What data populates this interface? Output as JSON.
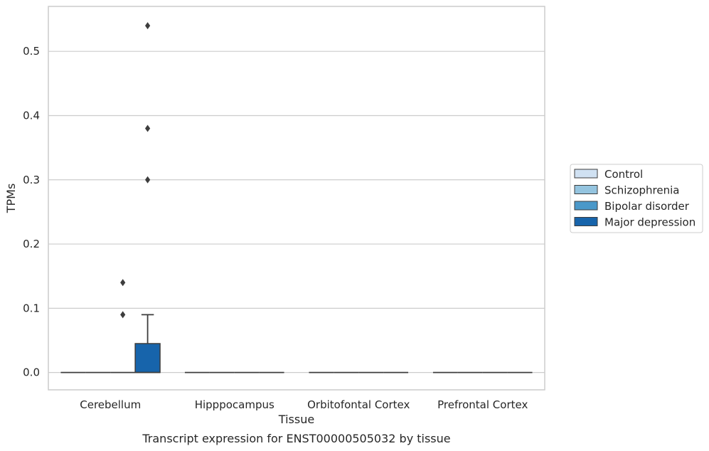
{
  "chart_data": {
    "type": "box",
    "title": "Transcript expression for ENST00000505032 by tissue",
    "xlabel": "Tissue",
    "ylabel": "TPMs",
    "categories": [
      "Cerebellum",
      "Hipppocampus",
      "Orbitofontal Cortex",
      "Prefrontal Cortex"
    ],
    "ylim": [
      -0.027,
      0.57
    ],
    "yticks": [
      "0.0",
      "0.1",
      "0.2",
      "0.3",
      "0.4",
      "0.5"
    ],
    "grid": true,
    "legend_position": "right",
    "series": [
      {
        "name": "Control",
        "color": "#d0e1f2",
        "boxes": [
          {
            "category": "Cerebellum",
            "min": 0,
            "q1": 0,
            "median": 0,
            "q3": 0,
            "max": 0,
            "outliers": []
          },
          {
            "category": "Hipppocampus",
            "min": 0,
            "q1": 0,
            "median": 0,
            "q3": 0,
            "max": 0,
            "outliers": []
          },
          {
            "category": "Orbitofontal Cortex",
            "min": 0,
            "q1": 0,
            "median": 0,
            "q3": 0,
            "max": 0,
            "outliers": []
          },
          {
            "category": "Prefrontal Cortex",
            "min": 0,
            "q1": 0,
            "median": 0,
            "q3": 0,
            "max": 0,
            "outliers": []
          }
        ]
      },
      {
        "name": "Schizophrenia",
        "color": "#94c4df",
        "boxes": [
          {
            "category": "Cerebellum",
            "min": 0,
            "q1": 0,
            "median": 0,
            "q3": 0,
            "max": 0,
            "outliers": []
          },
          {
            "category": "Hipppocampus",
            "min": 0,
            "q1": 0,
            "median": 0,
            "q3": 0,
            "max": 0,
            "outliers": []
          },
          {
            "category": "Orbitofontal Cortex",
            "min": 0,
            "q1": 0,
            "median": 0,
            "q3": 0,
            "max": 0,
            "outliers": []
          },
          {
            "category": "Prefrontal Cortex",
            "min": 0,
            "q1": 0,
            "median": 0,
            "q3": 0,
            "max": 0,
            "outliers": []
          }
        ]
      },
      {
        "name": "Bipolar disorder",
        "color": "#4a98c9",
        "boxes": [
          {
            "category": "Cerebellum",
            "min": 0,
            "q1": 0,
            "median": 0,
            "q3": 0,
            "max": 0,
            "outliers": [
              0.09,
              0.14
            ]
          },
          {
            "category": "Hipppocampus",
            "min": 0,
            "q1": 0,
            "median": 0,
            "q3": 0,
            "max": 0,
            "outliers": []
          },
          {
            "category": "Orbitofontal Cortex",
            "min": 0,
            "q1": 0,
            "median": 0,
            "q3": 0,
            "max": 0,
            "outliers": []
          },
          {
            "category": "Prefrontal Cortex",
            "min": 0,
            "q1": 0,
            "median": 0,
            "q3": 0,
            "max": 0,
            "outliers": []
          }
        ]
      },
      {
        "name": "Major depression",
        "color": "#1764ab",
        "boxes": [
          {
            "category": "Cerebellum",
            "min": 0,
            "q1": 0,
            "median": 0,
            "q3": 0.045,
            "max": 0.09,
            "outliers": [
              0.3,
              0.38,
              0.54
            ]
          },
          {
            "category": "Hipppocampus",
            "min": 0,
            "q1": 0,
            "median": 0,
            "q3": 0,
            "max": 0,
            "outliers": []
          },
          {
            "category": "Orbitofontal Cortex",
            "min": 0,
            "q1": 0,
            "median": 0,
            "q3": 0,
            "max": 0,
            "outliers": []
          },
          {
            "category": "Prefrontal Cortex",
            "min": 0,
            "q1": 0,
            "median": 0,
            "q3": 0,
            "max": 0,
            "outliers": []
          }
        ]
      }
    ]
  }
}
